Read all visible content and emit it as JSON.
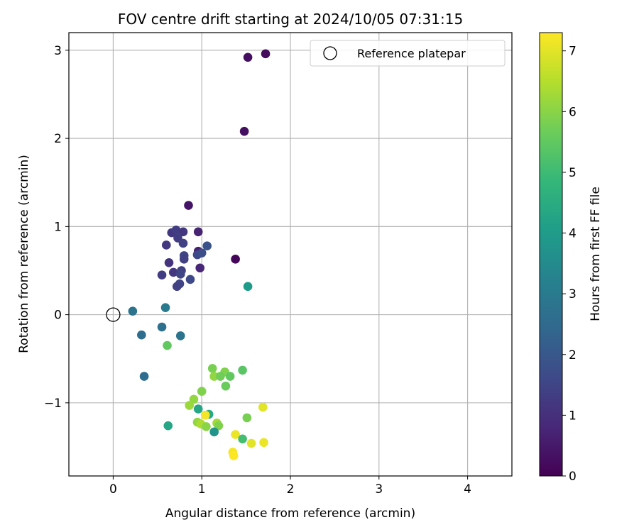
{
  "chart_data": {
    "type": "scatter",
    "title": "FOV centre drift starting at 2024/10/05 07:31:15",
    "xlabel": "Angular distance from reference (arcmin)",
    "ylabel": "Rotation from reference (arcmin)",
    "xlim": [
      -0.5,
      4.5
    ],
    "ylim": [
      -1.83,
      3.2
    ],
    "xticks": [
      0,
      1,
      2,
      3,
      4
    ],
    "xtick_labels": [
      "0",
      "1",
      "2",
      "3",
      "4"
    ],
    "yticks": [
      -1,
      0,
      1,
      2,
      3
    ],
    "ytick_labels": [
      "−1",
      "0",
      "1",
      "2",
      "3"
    ],
    "grid": true,
    "legend": {
      "position": "top-right",
      "entries": [
        {
          "label": "Reference platepar",
          "marker": "open-circle"
        }
      ]
    },
    "reference_point": {
      "x": 0,
      "y": 0
    },
    "colorbar": {
      "label": "Hours from first FF file",
      "colormap": "viridis",
      "range": [
        0,
        7.3
      ],
      "ticks": [
        0,
        1,
        2,
        3,
        4,
        5,
        6,
        7
      ],
      "tick_labels": [
        "0",
        "1",
        "2",
        "3",
        "4",
        "5",
        "6",
        "7"
      ]
    },
    "points": [
      {
        "x": 1.72,
        "y": 2.96,
        "c": 0.2
      },
      {
        "x": 1.52,
        "y": 2.92,
        "c": 0.3
      },
      {
        "x": 1.48,
        "y": 2.08,
        "c": 0.3
      },
      {
        "x": 0.85,
        "y": 1.24,
        "c": 0.4
      },
      {
        "x": 1.38,
        "y": 0.63,
        "c": 0.1
      },
      {
        "x": 0.96,
        "y": 0.94,
        "c": 0.7
      },
      {
        "x": 0.96,
        "y": 0.72,
        "c": 0.6
      },
      {
        "x": 0.98,
        "y": 0.53,
        "c": 0.8
      },
      {
        "x": 0.66,
        "y": 0.93,
        "c": 1.2
      },
      {
        "x": 0.71,
        "y": 0.96,
        "c": 1.3
      },
      {
        "x": 0.79,
        "y": 0.94,
        "c": 1.2
      },
      {
        "x": 0.73,
        "y": 0.87,
        "c": 1.3
      },
      {
        "x": 0.79,
        "y": 0.81,
        "c": 1.4
      },
      {
        "x": 0.6,
        "y": 0.79,
        "c": 1.2
      },
      {
        "x": 0.8,
        "y": 0.67,
        "c": 1.5
      },
      {
        "x": 0.8,
        "y": 0.63,
        "c": 1.4
      },
      {
        "x": 0.95,
        "y": 0.68,
        "c": 1.6
      },
      {
        "x": 1.0,
        "y": 0.7,
        "c": 1.7
      },
      {
        "x": 1.06,
        "y": 0.78,
        "c": 1.8
      },
      {
        "x": 0.63,
        "y": 0.59,
        "c": 1.1
      },
      {
        "x": 0.68,
        "y": 0.48,
        "c": 1.2
      },
      {
        "x": 0.77,
        "y": 0.5,
        "c": 1.4
      },
      {
        "x": 0.76,
        "y": 0.46,
        "c": 1.5
      },
      {
        "x": 0.55,
        "y": 0.45,
        "c": 1.3
      },
      {
        "x": 0.87,
        "y": 0.4,
        "c": 1.6
      },
      {
        "x": 0.75,
        "y": 0.35,
        "c": 1.5
      },
      {
        "x": 0.72,
        "y": 0.32,
        "c": 1.4
      },
      {
        "x": 1.52,
        "y": 0.32,
        "c": 4.0
      },
      {
        "x": 0.22,
        "y": 0.04,
        "c": 2.8
      },
      {
        "x": 0.59,
        "y": 0.08,
        "c": 3.0
      },
      {
        "x": 0.55,
        "y": -0.14,
        "c": 2.7
      },
      {
        "x": 0.32,
        "y": -0.23,
        "c": 2.6
      },
      {
        "x": 0.76,
        "y": -0.24,
        "c": 2.8
      },
      {
        "x": 0.61,
        "y": -0.35,
        "c": 5.5
      },
      {
        "x": 0.35,
        "y": -0.7,
        "c": 2.6
      },
      {
        "x": 1.12,
        "y": -0.61,
        "c": 5.8
      },
      {
        "x": 1.46,
        "y": -0.63,
        "c": 5.4
      },
      {
        "x": 1.26,
        "y": -0.65,
        "c": 5.9
      },
      {
        "x": 1.14,
        "y": -0.7,
        "c": 6.1
      },
      {
        "x": 1.21,
        "y": -0.7,
        "c": 5.7
      },
      {
        "x": 1.32,
        "y": -0.7,
        "c": 5.5
      },
      {
        "x": 1.27,
        "y": -0.81,
        "c": 5.6
      },
      {
        "x": 1.0,
        "y": -0.87,
        "c": 5.9
      },
      {
        "x": 0.91,
        "y": -0.96,
        "c": 6.1
      },
      {
        "x": 0.86,
        "y": -1.03,
        "c": 6.2
      },
      {
        "x": 0.96,
        "y": -1.07,
        "c": 4.3
      },
      {
        "x": 1.69,
        "y": -1.05,
        "c": 7.0
      },
      {
        "x": 1.08,
        "y": -1.13,
        "c": 4.4
      },
      {
        "x": 1.04,
        "y": -1.14,
        "c": 7.2
      },
      {
        "x": 1.51,
        "y": -1.17,
        "c": 5.8
      },
      {
        "x": 0.95,
        "y": -1.22,
        "c": 6.1
      },
      {
        "x": 0.99,
        "y": -1.24,
        "c": 6.4
      },
      {
        "x": 1.05,
        "y": -1.27,
        "c": 6.0
      },
      {
        "x": 1.17,
        "y": -1.23,
        "c": 6.3
      },
      {
        "x": 1.19,
        "y": -1.26,
        "c": 5.9
      },
      {
        "x": 0.62,
        "y": -1.26,
        "c": 4.3
      },
      {
        "x": 1.14,
        "y": -1.33,
        "c": 3.8
      },
      {
        "x": 1.38,
        "y": -1.36,
        "c": 7.1
      },
      {
        "x": 1.46,
        "y": -1.41,
        "c": 5.1
      },
      {
        "x": 1.7,
        "y": -1.45,
        "c": 7.1
      },
      {
        "x": 1.56,
        "y": -1.46,
        "c": 7.0
      },
      {
        "x": 1.35,
        "y": -1.56,
        "c": 7.2
      },
      {
        "x": 1.36,
        "y": -1.6,
        "c": 7.3
      }
    ]
  }
}
